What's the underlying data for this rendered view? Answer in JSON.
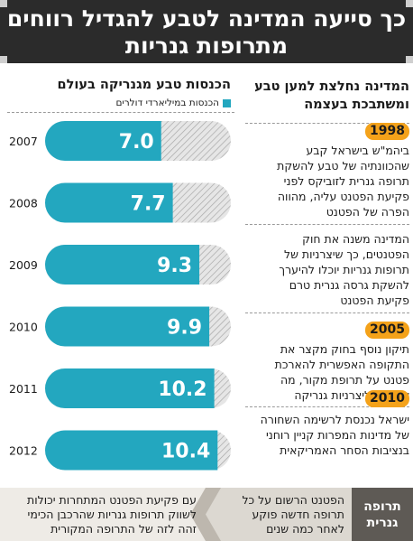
{
  "header": {
    "line1": "כך סייעה המדינה לטבע להגדיל רווחים",
    "line2": "מתרופות גנריות"
  },
  "right": {
    "heading_line1": "המדינה נחלצת למען טבע",
    "heading_line2": "ומשתבכת בעצמה",
    "blocks": [
      {
        "year": "1998",
        "lines": [
          "ביהמ\"ש בישראל קבע",
          "שהכוונתיה של טבע להשקת",
          "תרופה גנרית לזוביקס לפני",
          "פקיעת הפטנט עליה, מהווה",
          "הפרה של הפטנט"
        ]
      },
      {
        "year": "",
        "lines": [
          "המדינה משנה את חוק",
          "הפטנטים, כך שיצרניות של",
          "תרופות גנריות יוכלו להיערך",
          "להשקת גרסה גנרית טרם",
          "פקיעת הפטנט"
        ]
      },
      {
        "year": "2005",
        "lines": [
          "תיקון נוסף בחוק מקצר את",
          "התקופה האפשרית להארכת",
          "פטנט על תרופת מקור, מה",
          "שמסייע ליצרניות גנריקה"
        ]
      },
      {
        "year": "2010",
        "lines": [
          "ישראל נכנסת לרשימה השחורה",
          "של מדינות המפרות קניין רוחני",
          "בנציבות הסחר האמריקאית"
        ]
      }
    ]
  },
  "chart": {
    "title": "הכנסות טבע מגנריקה בעולם",
    "legend": "הכנסות במיליארדי דולרים"
  },
  "chart_data": {
    "type": "bar",
    "categories": [
      "2007",
      "2008",
      "2009",
      "2010",
      "2011",
      "2012"
    ],
    "values": [
      7.0,
      7.7,
      9.3,
      9.9,
      10.2,
      10.4
    ],
    "value_labels": [
      "7.0",
      "7.7",
      "9.3",
      "9.9",
      "10.2",
      "10.4"
    ],
    "title": "הכנסות טבע מגנריקה בעולם",
    "legend": [
      "הכנסות במיליארדי דולרים"
    ],
    "ylim": [
      0,
      11.2
    ],
    "colors": {
      "bar": "#23a7bf",
      "track": "#d9d9d9"
    }
  },
  "bottom": {
    "label_line1": "תרופה",
    "label_line2": "גנרית",
    "middle_lines": [
      "הפטנט הרשום על כל",
      "תרופה חדשה פוקע",
      "לאחר כמה שנים"
    ],
    "left_lines": [
      "עם פקיעת הפטנט המתחרות יכולות",
      "לשווק תרופות גנריות שהרכבן הכימי",
      "זהה לזה של התרופה המקורית"
    ]
  }
}
